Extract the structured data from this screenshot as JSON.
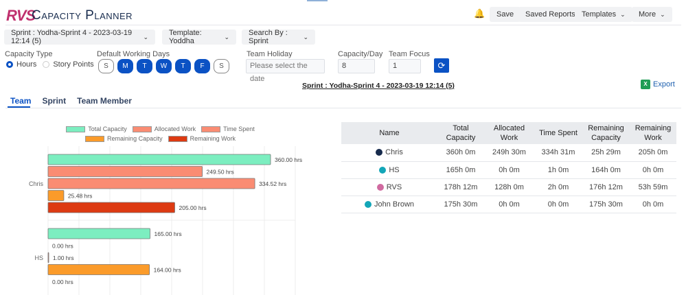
{
  "header": {
    "logo": "RVS",
    "title": "Capacity Planner",
    "save": "Save",
    "saved_reports": "Saved Reports",
    "templates": "Templates",
    "more": "More",
    "icon": "bell-icon"
  },
  "filters": {
    "sprint": "Sprint : Yodha-Sprint 4 - 2023-03-19 12:14 (5)",
    "template": "Template: Yoddha",
    "search_by": "Search By : Sprint"
  },
  "settings": {
    "capacity_type_label": "Capacity Type",
    "hours": "Hours",
    "story_points": "Story Points",
    "selected": "Hours",
    "working_days_label": "Default Working Days",
    "days": [
      {
        "l": "S",
        "on": false
      },
      {
        "l": "M",
        "on": true
      },
      {
        "l": "T",
        "on": true
      },
      {
        "l": "W",
        "on": true
      },
      {
        "l": "T",
        "on": true
      },
      {
        "l": "F",
        "on": true
      },
      {
        "l": "S",
        "on": false
      }
    ],
    "holiday_label": "Team Holiday",
    "holiday_placeholder": "Please select the date",
    "capacity_day_label": "Capacity/Day",
    "capacity_day": "8",
    "focus_label": "Team Focus",
    "focus": "1"
  },
  "sprint_heading": "Sprint : Yodha-Sprint 4 - 2023-03-19 12:14 (5)",
  "export": "Export",
  "tabs": [
    {
      "label": "Team",
      "active": true
    },
    {
      "label": "Sprint"
    },
    {
      "label": "Team Member"
    }
  ],
  "table": {
    "headers": [
      "Name",
      "Total Capacity",
      "Allocated Work",
      "Time Spent",
      "Remaining Capacity",
      "Remaining Work"
    ],
    "rows": [
      {
        "name": "Chris",
        "avatar": "#172b4d",
        "cells": [
          "360h 0m",
          "249h 30m",
          "334h 31m",
          "25h 29m",
          "205h 0m"
        ]
      },
      {
        "name": "HS",
        "avatar": "#13a6b8",
        "cells": [
          "165h 0m",
          "0h 0m",
          "1h 0m",
          "164h 0m",
          "0h 0m"
        ]
      },
      {
        "name": "RVS",
        "avatar": "#d06aa0",
        "cells": [
          "178h 12m",
          "128h 0m",
          "2h 0m",
          "176h 12m",
          "53h 59m"
        ]
      },
      {
        "name": "John Brown",
        "avatar": "#13a6b8",
        "cells": [
          "175h 30m",
          "0h 0m",
          "0h 0m",
          "175h 30m",
          "0h 0m"
        ]
      }
    ]
  },
  "chart_data": {
    "type": "bar",
    "orientation": "horizontal",
    "categories": [
      "Chris",
      "HS"
    ],
    "xlim": [
      0,
      400
    ],
    "grid": true,
    "legend": "top",
    "value_suffix": " hrs",
    "series": [
      {
        "name": "Total Capacity",
        "color": "#7ceec0",
        "values": [
          360,
          165
        ]
      },
      {
        "name": "Allocated Work",
        "color": "#fa8c73",
        "values": [
          249.5,
          0
        ]
      },
      {
        "name": "Time Spent",
        "color": "#fa8c73",
        "values": [
          334.52,
          1
        ]
      },
      {
        "name": "Remaining Capacity",
        "color": "#fb9b2a",
        "values": [
          25.48,
          164
        ]
      },
      {
        "name": "Remaining Work",
        "color": "#dd3a12",
        "values": [
          205,
          0
        ]
      }
    ]
  }
}
